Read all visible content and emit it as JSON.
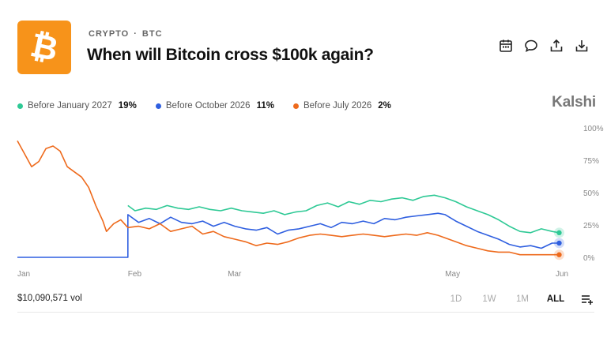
{
  "header": {
    "breadcrumb": [
      "CRYPTO",
      "BTC"
    ],
    "breadcrumb_sep": "·",
    "title": "When will Bitcoin cross $100k again?",
    "logo_icon": "bitcoin-logo-icon",
    "actions": [
      "calendar-icon",
      "comment-icon",
      "share-icon",
      "download-icon"
    ]
  },
  "brand": "Kalshi",
  "legend": [
    {
      "label": "Before January 2027",
      "value": "19%",
      "color": "#2ec995"
    },
    {
      "label": "Before October 2026",
      "value": "11%",
      "color": "#2f5fe0"
    },
    {
      "label": "Before July 2026",
      "value": "2%",
      "color": "#ee6a1c"
    }
  ],
  "footer": {
    "volume": "$10,090,571 vol",
    "ranges": [
      "1D",
      "1W",
      "1M",
      "ALL"
    ],
    "active_range": "ALL",
    "filter_icon": "list-filter-icon"
  },
  "chart_data": {
    "type": "line",
    "x_tick_labels": [
      "Jan",
      "Feb",
      "Mar",
      "May",
      "Jun"
    ],
    "x_tick_positions": [
      0,
      31,
      59,
      120,
      151
    ],
    "y_ticks": [
      0,
      25,
      50,
      75,
      100
    ],
    "y_tick_labels": [
      "0%",
      "25%",
      "50%",
      "75%",
      "100%"
    ],
    "ylim": [
      0,
      100
    ],
    "xlim": [
      0,
      153
    ],
    "grid": false,
    "y_axis_side": "right",
    "series": [
      {
        "name": "Before January 2027",
        "color": "#2ec995",
        "points": [
          [
            31,
            40
          ],
          [
            33,
            36
          ],
          [
            36,
            38
          ],
          [
            39,
            37
          ],
          [
            42,
            40
          ],
          [
            45,
            38
          ],
          [
            48,
            37
          ],
          [
            51,
            39
          ],
          [
            54,
            37
          ],
          [
            57,
            36
          ],
          [
            60,
            38
          ],
          [
            63,
            36
          ],
          [
            66,
            35
          ],
          [
            69,
            34
          ],
          [
            72,
            36
          ],
          [
            75,
            33
          ],
          [
            78,
            35
          ],
          [
            81,
            36
          ],
          [
            84,
            40
          ],
          [
            87,
            42
          ],
          [
            90,
            39
          ],
          [
            93,
            43
          ],
          [
            96,
            41
          ],
          [
            99,
            44
          ],
          [
            102,
            43
          ],
          [
            105,
            45
          ],
          [
            108,
            46
          ],
          [
            111,
            44
          ],
          [
            114,
            47
          ],
          [
            117,
            48
          ],
          [
            120,
            46
          ],
          [
            123,
            43
          ],
          [
            126,
            39
          ],
          [
            129,
            36
          ],
          [
            132,
            33
          ],
          [
            135,
            29
          ],
          [
            138,
            24
          ],
          [
            141,
            20
          ],
          [
            144,
            19
          ],
          [
            147,
            22
          ],
          [
            150,
            20
          ],
          [
            152,
            19
          ]
        ]
      },
      {
        "name": "Before October 2026",
        "color": "#2f5fe0",
        "points": [
          [
            0,
            0
          ],
          [
            31,
            0
          ],
          [
            31,
            33
          ],
          [
            34,
            27
          ],
          [
            37,
            30
          ],
          [
            40,
            26
          ],
          [
            43,
            31
          ],
          [
            46,
            27
          ],
          [
            49,
            26
          ],
          [
            52,
            28
          ],
          [
            55,
            24
          ],
          [
            58,
            27
          ],
          [
            61,
            24
          ],
          [
            64,
            22
          ],
          [
            67,
            21
          ],
          [
            70,
            23
          ],
          [
            73,
            18
          ],
          [
            76,
            21
          ],
          [
            79,
            22
          ],
          [
            82,
            24
          ],
          [
            85,
            26
          ],
          [
            88,
            23
          ],
          [
            91,
            27
          ],
          [
            94,
            26
          ],
          [
            97,
            28
          ],
          [
            100,
            26
          ],
          [
            103,
            30
          ],
          [
            106,
            29
          ],
          [
            109,
            31
          ],
          [
            112,
            32
          ],
          [
            115,
            33
          ],
          [
            118,
            34
          ],
          [
            120,
            33
          ],
          [
            123,
            28
          ],
          [
            126,
            24
          ],
          [
            129,
            20
          ],
          [
            132,
            17
          ],
          [
            135,
            14
          ],
          [
            138,
            10
          ],
          [
            141,
            8
          ],
          [
            144,
            9
          ],
          [
            147,
            7
          ],
          [
            150,
            11
          ],
          [
            152,
            11
          ]
        ]
      },
      {
        "name": "Before July 2026",
        "color": "#ee6a1c",
        "points": [
          [
            0,
            90
          ],
          [
            2,
            80
          ],
          [
            4,
            70
          ],
          [
            6,
            74
          ],
          [
            8,
            84
          ],
          [
            10,
            86
          ],
          [
            12,
            82
          ],
          [
            14,
            70
          ],
          [
            16,
            66
          ],
          [
            18,
            62
          ],
          [
            20,
            54
          ],
          [
            22,
            40
          ],
          [
            24,
            28
          ],
          [
            25,
            20
          ],
          [
            27,
            26
          ],
          [
            29,
            29
          ],
          [
            31,
            23
          ],
          [
            34,
            24
          ],
          [
            37,
            22
          ],
          [
            40,
            26
          ],
          [
            43,
            20
          ],
          [
            46,
            22
          ],
          [
            49,
            24
          ],
          [
            52,
            18
          ],
          [
            55,
            20
          ],
          [
            58,
            16
          ],
          [
            61,
            14
          ],
          [
            64,
            12
          ],
          [
            67,
            9
          ],
          [
            70,
            11
          ],
          [
            73,
            10
          ],
          [
            76,
            12
          ],
          [
            79,
            15
          ],
          [
            82,
            17
          ],
          [
            85,
            18
          ],
          [
            88,
            17
          ],
          [
            91,
            16
          ],
          [
            94,
            17
          ],
          [
            97,
            18
          ],
          [
            100,
            17
          ],
          [
            103,
            16
          ],
          [
            106,
            17
          ],
          [
            109,
            18
          ],
          [
            112,
            17
          ],
          [
            115,
            19
          ],
          [
            118,
            17
          ],
          [
            120,
            15
          ],
          [
            123,
            12
          ],
          [
            126,
            9
          ],
          [
            129,
            7
          ],
          [
            132,
            5
          ],
          [
            135,
            4
          ],
          [
            138,
            4
          ],
          [
            141,
            2
          ],
          [
            144,
            2
          ],
          [
            147,
            2
          ],
          [
            150,
            2
          ],
          [
            152,
            2
          ]
        ]
      }
    ]
  }
}
